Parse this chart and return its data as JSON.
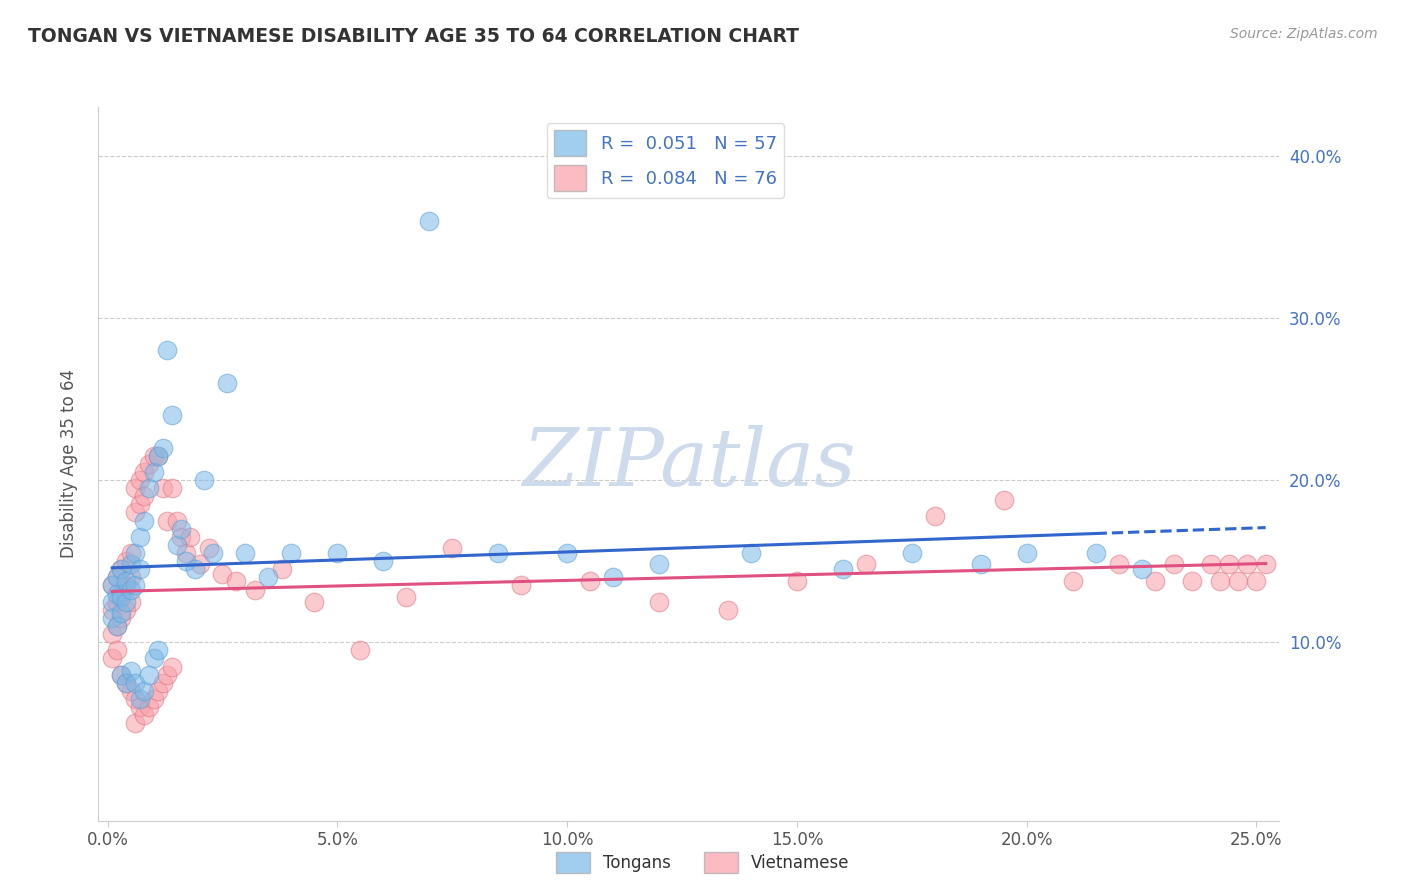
{
  "title": "TONGAN VS VIETNAMESE DISABILITY AGE 35 TO 64 CORRELATION CHART",
  "source_text": "Source: ZipAtlas.com",
  "ylabel": "Disability Age 35 to 64",
  "xlim": [
    -0.002,
    0.255
  ],
  "ylim": [
    -0.01,
    0.43
  ],
  "xtick_labels": [
    "0.0%",
    "5.0%",
    "10.0%",
    "15.0%",
    "20.0%",
    "25.0%"
  ],
  "xtick_vals": [
    0.0,
    0.05,
    0.1,
    0.15,
    0.2,
    0.25
  ],
  "ytick_labels": [
    "10.0%",
    "20.0%",
    "30.0%",
    "40.0%"
  ],
  "ytick_vals": [
    0.1,
    0.2,
    0.3,
    0.4
  ],
  "tongan_color": "#7ab8e8",
  "tongan_edge_color": "#5a9fd4",
  "vietnamese_color": "#f8a0a8",
  "vietnamese_edge_color": "#e07080",
  "tongan_line_color": "#3366cc",
  "vietnamese_line_color": "#e05080",
  "tongan_R": 0.051,
  "tongan_N": 57,
  "vietnamese_R": 0.084,
  "vietnamese_N": 76,
  "legend_label_tongan": "Tongans",
  "legend_label_vietnamese": "Vietnamese",
  "watermark": "ZIPatlas",
  "watermark_color": "#c8d8ea",
  "background_color": "#ffffff",
  "grid_color": "#cccccc",
  "title_color": "#333333",
  "ytick_color": "#4472C4",
  "xtick_color": "#555555",
  "axis_label_color": "#555555",
  "tongan_scatter_x": [
    0.001,
    0.001,
    0.001,
    0.002,
    0.002,
    0.002,
    0.003,
    0.003,
    0.003,
    0.003,
    0.004,
    0.004,
    0.004,
    0.005,
    0.005,
    0.005,
    0.006,
    0.006,
    0.006,
    0.007,
    0.007,
    0.007,
    0.008,
    0.008,
    0.009,
    0.009,
    0.01,
    0.01,
    0.011,
    0.011,
    0.012,
    0.013,
    0.014,
    0.015,
    0.016,
    0.017,
    0.019,
    0.021,
    0.023,
    0.026,
    0.03,
    0.035,
    0.04,
    0.05,
    0.06,
    0.07,
    0.085,
    0.1,
    0.11,
    0.12,
    0.14,
    0.16,
    0.175,
    0.19,
    0.2,
    0.215,
    0.225
  ],
  "tongan_scatter_y": [
    0.135,
    0.125,
    0.115,
    0.14,
    0.13,
    0.11,
    0.145,
    0.128,
    0.118,
    0.08,
    0.138,
    0.125,
    0.075,
    0.148,
    0.132,
    0.082,
    0.155,
    0.135,
    0.075,
    0.165,
    0.145,
    0.065,
    0.175,
    0.07,
    0.195,
    0.08,
    0.205,
    0.09,
    0.215,
    0.095,
    0.22,
    0.28,
    0.24,
    0.16,
    0.17,
    0.15,
    0.145,
    0.2,
    0.155,
    0.26,
    0.155,
    0.14,
    0.155,
    0.155,
    0.15,
    0.36,
    0.155,
    0.155,
    0.14,
    0.148,
    0.155,
    0.145,
    0.155,
    0.148,
    0.155,
    0.155,
    0.145
  ],
  "vietnamese_scatter_x": [
    0.001,
    0.001,
    0.001,
    0.001,
    0.002,
    0.002,
    0.002,
    0.002,
    0.003,
    0.003,
    0.003,
    0.003,
    0.004,
    0.004,
    0.004,
    0.004,
    0.005,
    0.005,
    0.005,
    0.005,
    0.006,
    0.006,
    0.006,
    0.006,
    0.007,
    0.007,
    0.007,
    0.008,
    0.008,
    0.008,
    0.009,
    0.009,
    0.01,
    0.01,
    0.011,
    0.011,
    0.012,
    0.012,
    0.013,
    0.013,
    0.014,
    0.014,
    0.015,
    0.016,
    0.017,
    0.018,
    0.02,
    0.022,
    0.025,
    0.028,
    0.032,
    0.038,
    0.045,
    0.055,
    0.065,
    0.075,
    0.09,
    0.105,
    0.12,
    0.135,
    0.15,
    0.165,
    0.18,
    0.195,
    0.21,
    0.22,
    0.228,
    0.232,
    0.236,
    0.24,
    0.242,
    0.244,
    0.246,
    0.248,
    0.25,
    0.252
  ],
  "vietnamese_scatter_y": [
    0.135,
    0.12,
    0.105,
    0.09,
    0.14,
    0.125,
    0.11,
    0.095,
    0.145,
    0.13,
    0.115,
    0.08,
    0.15,
    0.135,
    0.12,
    0.075,
    0.155,
    0.14,
    0.125,
    0.07,
    0.195,
    0.18,
    0.065,
    0.05,
    0.2,
    0.185,
    0.06,
    0.205,
    0.19,
    0.055,
    0.21,
    0.06,
    0.215,
    0.065,
    0.215,
    0.07,
    0.195,
    0.075,
    0.175,
    0.08,
    0.195,
    0.085,
    0.175,
    0.165,
    0.155,
    0.165,
    0.148,
    0.158,
    0.142,
    0.138,
    0.132,
    0.145,
    0.125,
    0.095,
    0.128,
    0.158,
    0.135,
    0.138,
    0.125,
    0.12,
    0.138,
    0.148,
    0.178,
    0.188,
    0.138,
    0.148,
    0.138,
    0.148,
    0.138,
    0.148,
    0.138,
    0.148,
    0.138,
    0.148,
    0.138,
    0.148
  ]
}
